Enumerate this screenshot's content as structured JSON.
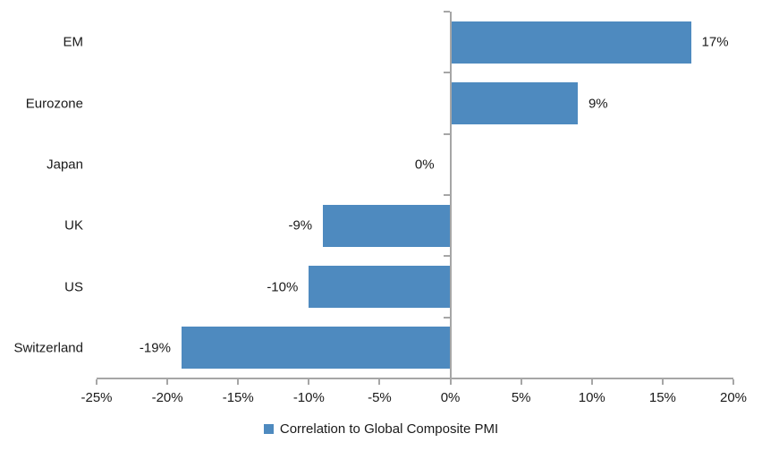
{
  "chart_data": {
    "type": "bar",
    "orientation": "horizontal",
    "title": "",
    "xlabel": "",
    "ylabel": "",
    "categories": [
      "EM",
      "Eurozone",
      "Japan",
      "UK",
      "US",
      "Switzerland"
    ],
    "series": [
      {
        "name": "Correlation to Global Composite PMI",
        "values": [
          17,
          9,
          0,
          -9,
          -10,
          -19
        ],
        "value_labels": [
          "17%",
          "9%",
          "0%",
          "-9%",
          "-10%",
          "-19%"
        ]
      }
    ],
    "xlim": [
      -25,
      20
    ],
    "x_ticks": [
      -25,
      -20,
      -15,
      -10,
      -5,
      0,
      5,
      10,
      15,
      20
    ],
    "x_tick_labels": [
      "-25%",
      "-20%",
      "-15%",
      "-10%",
      "-5%",
      "0%",
      "5%",
      "10%",
      "15%",
      "20%"
    ],
    "legend": [
      "Correlation to Global Composite PMI"
    ],
    "legend_position": "bottom-center",
    "grid": false,
    "bar_color": "#4E8ABF",
    "axis_color": "#A6A6A6",
    "text_color": "#1A1A1A",
    "background_color": "#FFFFFF"
  }
}
